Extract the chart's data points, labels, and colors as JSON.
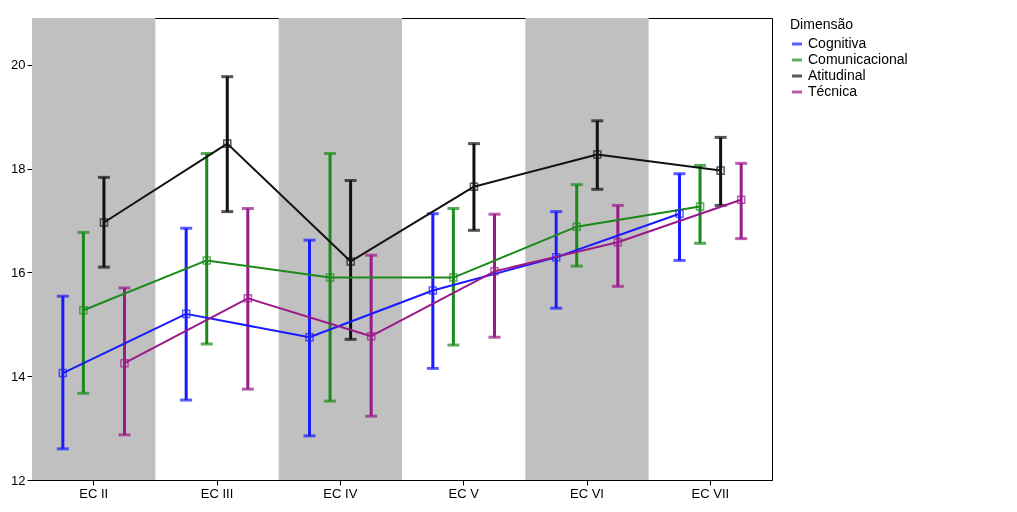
{
  "chart_data": {
    "type": "line",
    "legend_title": "Dimensão",
    "categories": [
      "EC II",
      "EC III",
      "EC IV",
      "EC V",
      "EC VI",
      "EC VII"
    ],
    "ylim": [
      12,
      20.9
    ],
    "yticks": [
      12,
      14,
      16,
      18,
      20
    ],
    "grid": false,
    "legend": "top right",
    "marker": "square",
    "line_style": "solid",
    "bands": [
      {
        "axis": "x",
        "from": "EC II",
        "to": "EC II",
        "color": "#c0c0c0"
      },
      {
        "axis": "x",
        "from": "EC IV",
        "to": "EC IV",
        "color": "#c0c0c0"
      },
      {
        "axis": "x",
        "from": "EC VI",
        "to": "EC VI",
        "color": "#c0c0c0"
      }
    ],
    "series": [
      {
        "name": "Cognitiva",
        "color": "#1a1aff",
        "values": [
          14.06,
          15.2,
          14.75,
          15.65,
          16.29,
          17.13
        ],
        "errors": [
          [
            12.6,
            15.54
          ],
          [
            13.54,
            16.85
          ],
          [
            12.85,
            16.62
          ],
          [
            14.15,
            17.13
          ],
          [
            15.31,
            17.17
          ],
          [
            16.23,
            17.9
          ]
        ]
      },
      {
        "name": "Comunicacional",
        "color": "#1a8a1a",
        "values": [
          15.27,
          16.23,
          15.9,
          15.9,
          16.88,
          17.27
        ],
        "errors": [
          [
            13.67,
            16.77
          ],
          [
            14.62,
            18.29
          ],
          [
            13.52,
            18.29
          ],
          [
            14.6,
            17.23
          ],
          [
            16.12,
            17.69
          ],
          [
            16.56,
            18.06
          ]
        ]
      },
      {
        "name": "Atitudinal",
        "color": "#111111",
        "values": [
          16.96,
          18.48,
          16.21,
          17.65,
          18.27,
          17.96
        ],
        "errors": [
          [
            16.1,
            17.83
          ],
          [
            17.17,
            19.77
          ],
          [
            14.71,
            17.77
          ],
          [
            16.81,
            18.48
          ],
          [
            17.6,
            18.92
          ],
          [
            17.29,
            18.6
          ]
        ]
      },
      {
        "name": "Técnica",
        "color": "#9a1a8a",
        "values": [
          14.25,
          15.5,
          14.77,
          16.02,
          16.58,
          17.4
        ],
        "errors": [
          [
            12.87,
            15.7
          ],
          [
            13.75,
            17.23
          ],
          [
            13.23,
            16.33
          ],
          [
            14.75,
            17.12
          ],
          [
            15.73,
            17.29
          ],
          [
            16.65,
            18.1
          ]
        ]
      }
    ]
  }
}
